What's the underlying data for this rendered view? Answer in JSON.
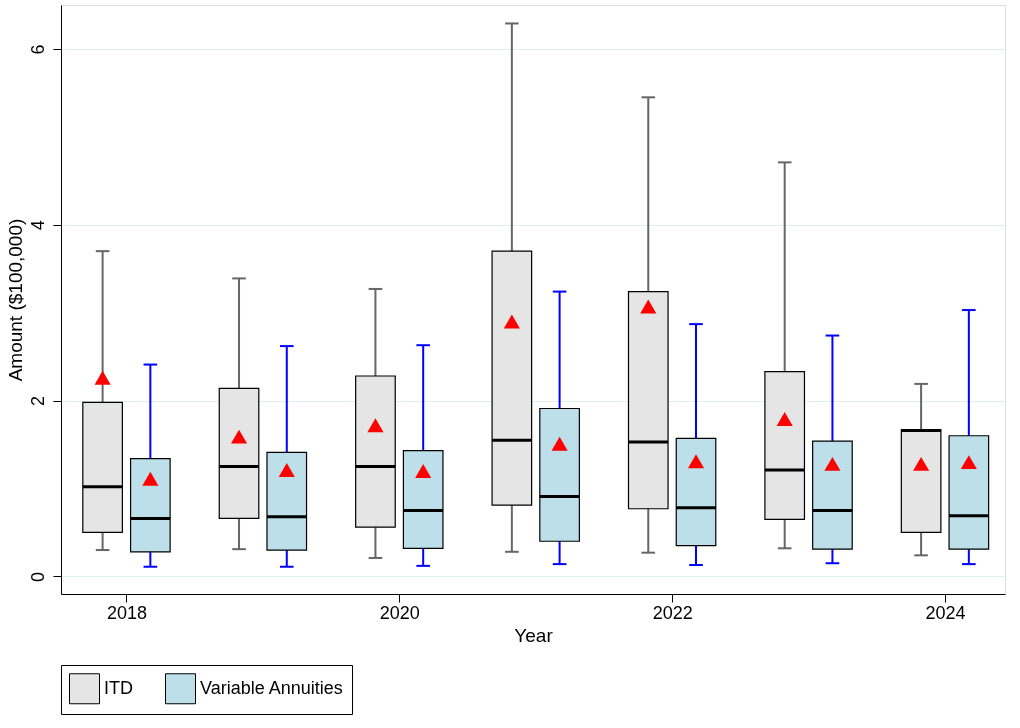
{
  "chart_data": {
    "type": "box",
    "xlabel": "Year",
    "ylabel": "Amount ($100,000)",
    "categories": [
      "2018",
      null,
      "2020",
      null,
      "2022",
      null,
      "2024"
    ],
    "ylim": [
      -0.2,
      6.5
    ],
    "yticks": [
      0,
      2,
      4,
      6
    ],
    "grid": "y",
    "legend": "bottom",
    "marker": "triangle",
    "series": [
      {
        "name": "ITD",
        "color": "#e5e5e5",
        "boxes": [
          {
            "low": 0.3,
            "q1": 0.5,
            "median": 1.02,
            "q3": 1.98,
            "high": 3.7,
            "mean": 2.26
          },
          {
            "low": 0.31,
            "q1": 0.66,
            "median": 1.25,
            "q3": 2.14,
            "high": 3.39,
            "mean": 1.59
          },
          {
            "low": 0.21,
            "q1": 0.56,
            "median": 1.25,
            "q3": 2.28,
            "high": 3.27,
            "mean": 1.72
          },
          {
            "low": 0.28,
            "q1": 0.81,
            "median": 1.55,
            "q3": 3.7,
            "high": 6.29,
            "mean": 2.9
          },
          {
            "low": 0.27,
            "q1": 0.77,
            "median": 1.53,
            "q3": 3.24,
            "high": 5.45,
            "mean": 3.07
          },
          {
            "low": 0.32,
            "q1": 0.65,
            "median": 1.21,
            "q3": 2.33,
            "high": 4.71,
            "mean": 1.79
          },
          {
            "low": 0.24,
            "q1": 0.5,
            "median": 1.66,
            "q3": 1.67,
            "high": 2.19,
            "mean": 1.28
          }
        ]
      },
      {
        "name": "Variable Annuities",
        "color": "#bcdfe9",
        "boxes": [
          {
            "low": 0.11,
            "q1": 0.28,
            "median": 0.66,
            "q3": 1.34,
            "high": 2.41,
            "mean": 1.11
          },
          {
            "low": 0.11,
            "q1": 0.3,
            "median": 0.68,
            "q3": 1.41,
            "high": 2.62,
            "mean": 1.21
          },
          {
            "low": 0.12,
            "q1": 0.32,
            "median": 0.75,
            "q3": 1.43,
            "high": 2.63,
            "mean": 1.2
          },
          {
            "low": 0.14,
            "q1": 0.4,
            "median": 0.91,
            "q3": 1.91,
            "high": 3.24,
            "mean": 1.51
          },
          {
            "low": 0.13,
            "q1": 0.35,
            "median": 0.78,
            "q3": 1.57,
            "high": 2.87,
            "mean": 1.31
          },
          {
            "low": 0.15,
            "q1": 0.31,
            "median": 0.75,
            "q3": 1.54,
            "high": 2.74,
            "mean": 1.28
          },
          {
            "low": 0.14,
            "q1": 0.31,
            "median": 0.69,
            "q3": 1.6,
            "high": 3.03,
            "mean": 1.3
          }
        ]
      }
    ]
  }
}
